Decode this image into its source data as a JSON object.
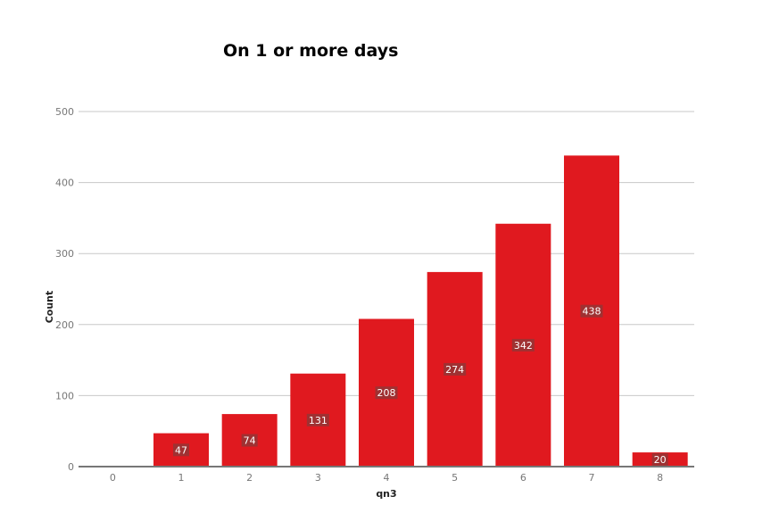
{
  "colors": {
    "bar": "#e0191f",
    "grid": "#c8c8c8",
    "axis": "#777777",
    "label_bg": "#8a3a3a"
  },
  "chart_data": {
    "type": "bar",
    "title": "On 1 or more days",
    "xlabel": "qn3",
    "ylabel": "Count",
    "categories": [
      "0",
      "1",
      "2",
      "3",
      "4",
      "5",
      "6",
      "7",
      "8"
    ],
    "values": [
      0,
      47,
      74,
      131,
      208,
      274,
      342,
      438,
      20
    ],
    "data_labels": [
      "",
      "47",
      "74",
      "131",
      "208",
      "274",
      "342",
      "438",
      "20"
    ],
    "ylim": [
      0,
      500
    ],
    "yticks": [
      "0",
      "100",
      "200",
      "300",
      "400",
      "500"
    ],
    "grid": true,
    "legend": "none"
  }
}
